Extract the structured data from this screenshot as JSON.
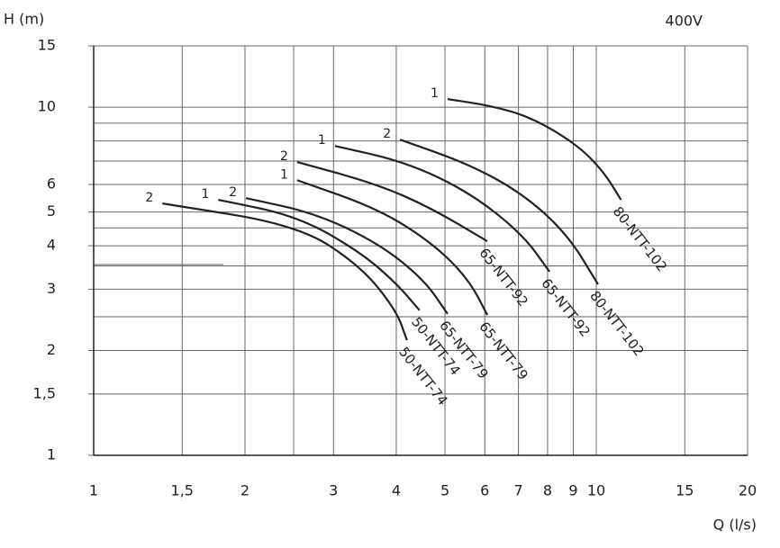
{
  "chart_data": {
    "type": "line",
    "y_label": "H (m)",
    "x_label": "Q (l/s)",
    "annotation": "400V",
    "log_x": true,
    "log_y": true,
    "grid": true,
    "xlim": [
      1,
      20
    ],
    "ylim": [
      1,
      15
    ],
    "xticks": [
      1,
      {
        "value": 1.5,
        "label": "1,5"
      },
      2,
      3,
      4,
      5,
      6,
      7,
      8,
      9,
      10,
      15,
      20
    ],
    "yticks": [
      1,
      {
        "value": 1.5,
        "label": "1,5"
      },
      2,
      3,
      4,
      5,
      6,
      10,
      15
    ],
    "xgrid": [
      2.5
    ],
    "ygrid": [
      2.5,
      3.5,
      4.5,
      7,
      8,
      9
    ],
    "series": [
      {
        "name": "50-NTT-74",
        "curve": "2",
        "color": "#222",
        "x": [
          1.37,
          2.54,
          3.39,
          4.0,
          4.2
        ],
        "values": [
          5.29,
          4.59,
          3.51,
          2.61,
          2.14
        ]
      },
      {
        "name": "50-NTT-74",
        "curve": "1",
        "color": "#222",
        "x": [
          1.77,
          2.54,
          3.39,
          4.0,
          4.45
        ],
        "values": [
          5.42,
          4.87,
          3.84,
          3.12,
          2.61
        ]
      },
      {
        "name": "65-NTT-79",
        "curve": "2",
        "color": "#222",
        "x": [
          2.01,
          2.76,
          3.68,
          4.53,
          5.06
        ],
        "values": [
          5.48,
          4.96,
          4.07,
          3.21,
          2.55
        ]
      },
      {
        "name": "65-NTT-79",
        "curve": "1",
        "color": "#222",
        "x": [
          2.54,
          3.68,
          4.72,
          5.57,
          6.07
        ],
        "values": [
          6.17,
          5.11,
          4.07,
          3.21,
          2.53
        ]
      },
      {
        "name": "65-NTT-92",
        "curve": "2",
        "color": "#222",
        "x": [
          2.54,
          3.68,
          4.72,
          6.07
        ],
        "values": [
          6.96,
          6.0,
          5.11,
          4.12
        ]
      },
      {
        "name": "65-NTT-92",
        "curve": "1",
        "color": "#222",
        "x": [
          3.02,
          4.17,
          5.57,
          7.13,
          8.07
        ],
        "values": [
          7.74,
          6.96,
          5.72,
          4.32,
          3.37
        ]
      },
      {
        "name": "80-NTT-102",
        "curve": "2",
        "color": "#222",
        "x": [
          4.07,
          5.57,
          7.13,
          8.76,
          10.08
        ],
        "values": [
          8.07,
          6.87,
          5.65,
          4.32,
          3.1
        ]
      },
      {
        "name": "80-NTT-102",
        "curve": "1",
        "color": "#222",
        "x": [
          5.06,
          6.17,
          7.43,
          9.13,
          10.33,
          11.2
        ],
        "values": [
          10.55,
          10.1,
          9.35,
          7.83,
          6.55,
          5.42
        ]
      }
    ]
  }
}
